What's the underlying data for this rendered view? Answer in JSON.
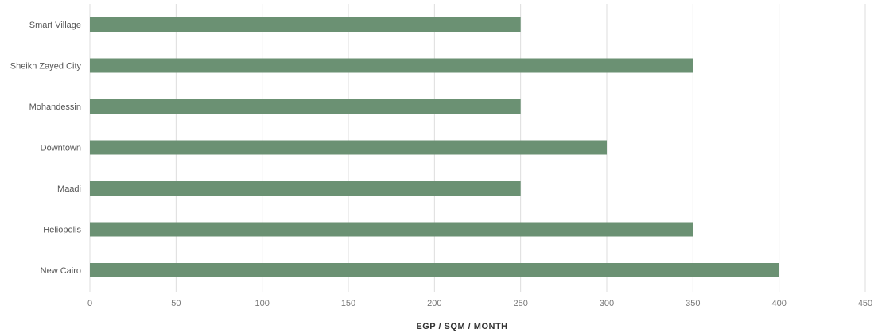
{
  "chart_data": {
    "type": "bar",
    "orientation": "horizontal",
    "categories": [
      "Smart Village",
      "Sheikh Zayed City",
      "Mohandessin",
      "Downtown",
      "Maadi",
      "Heliopolis",
      "New Cairo"
    ],
    "values": [
      250,
      350,
      250,
      300,
      250,
      350,
      400
    ],
    "xlabel": "EGP / SQM / MONTH",
    "ylabel": "",
    "xlim": [
      0,
      450
    ],
    "xticks": [
      0,
      50,
      100,
      150,
      200,
      250,
      300,
      350,
      400,
      450
    ],
    "grid": "vertical",
    "legend": "none",
    "bar_color": "#6b9173",
    "grid_color": "#dddddd"
  }
}
